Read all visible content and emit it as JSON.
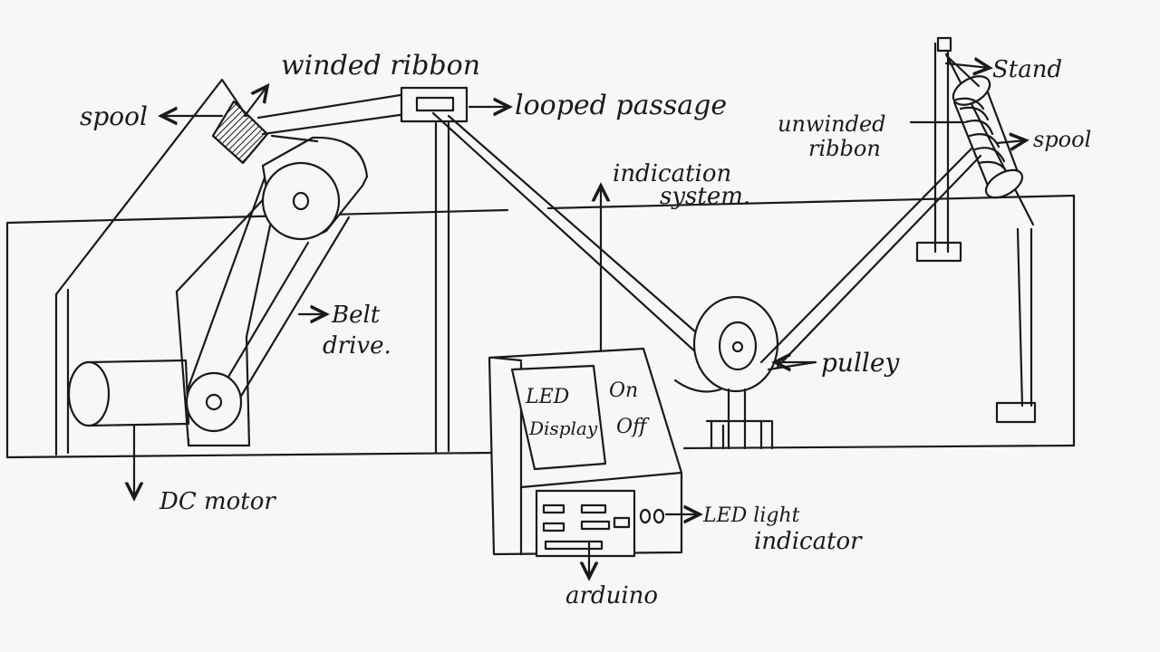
{
  "diagram": {
    "labels": {
      "winded_ribbon": "winded ribbon",
      "spool_left": "spool",
      "looped_passage": "looped passage",
      "indication_line1": "indication",
      "indication_line2": "system.",
      "stand": "Stand",
      "unwinded_line1": "unwinded",
      "unwinded_line2": "ribbon",
      "spool_right": "spool",
      "belt_line1": "Belt",
      "belt_line2": "drive.",
      "pulley": "pulley",
      "dc_motor": "DC motor",
      "led_display_line1": "LED",
      "led_display_line2": "Display",
      "on": "On",
      "off": "Off",
      "led_light_line1": "LED light",
      "led_light_line2": "indicator",
      "arduino": "arduino"
    }
  }
}
